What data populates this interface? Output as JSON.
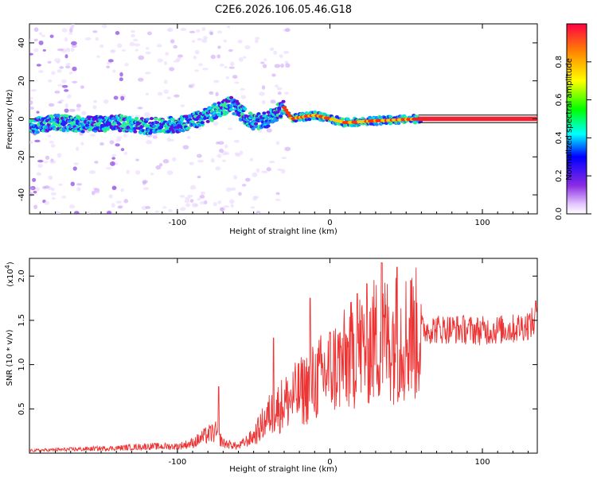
{
  "title": "C2E6.2026.106.05.46.G18",
  "chart_data": [
    {
      "type": "heatmap",
      "name": "spectrogram",
      "xlabel": "Height of straight line (km)",
      "ylabel": "Frequency (Hz)",
      "xlim": [
        -197,
        136
      ],
      "ylim": [
        -50,
        50
      ],
      "xticks": [
        -100,
        0,
        100
      ],
      "xtick_labels": [
        "-100",
        "0",
        "100"
      ],
      "yticks": [
        -40,
        -20,
        0,
        20,
        40
      ],
      "ytick_labels": [
        "-40",
        "-20",
        "0",
        "20",
        "40"
      ],
      "colorbar": {
        "label": "Normalized spectral amplitude",
        "range": [
          0.0,
          1.0
        ],
        "ticks": [
          0.0,
          0.2,
          0.4,
          0.6,
          0.8
        ],
        "tick_labels": [
          "0.0",
          "0.2",
          "0.4",
          "0.6",
          "0.8"
        ]
      },
      "ridge": [
        {
          "x": -197,
          "f": -4
        },
        {
          "x": -180,
          "f": -2
        },
        {
          "x": -160,
          "f": -3
        },
        {
          "x": -140,
          "f": -2
        },
        {
          "x": -120,
          "f": -4
        },
        {
          "x": -100,
          "f": -3
        },
        {
          "x": -85,
          "f": 0
        },
        {
          "x": -75,
          "f": 4
        },
        {
          "x": -65,
          "f": 8
        },
        {
          "x": -58,
          "f": 3
        },
        {
          "x": -50,
          "f": -2
        },
        {
          "x": -40,
          "f": 0
        },
        {
          "x": -30,
          "f": 6
        },
        {
          "x": -25,
          "f": 0
        },
        {
          "x": -10,
          "f": 2
        },
        {
          "x": 0,
          "f": 0
        },
        {
          "x": 10,
          "f": -2
        },
        {
          "x": 30,
          "f": -1
        },
        {
          "x": 60,
          "f": 0
        },
        {
          "x": 136,
          "f": 0
        }
      ]
    },
    {
      "type": "line",
      "name": "snr",
      "xlabel": "Height of straight line (km)",
      "ylabel": "SNR (10 * v/v)",
      "multiplier_label": "(x10",
      "multiplier_exp": "4",
      "multiplier_close": ")",
      "xlim": [
        -197,
        136
      ],
      "ylim": [
        0,
        2.2
      ],
      "xticks": [
        -100,
        0,
        100
      ],
      "xtick_labels": [
        "-100",
        "0",
        "100"
      ],
      "yticks": [
        0.5,
        1.0,
        1.5,
        2.0
      ],
      "ytick_labels": [
        "0.5",
        "1.0",
        "1.5",
        "2.0"
      ],
      "series_color": "#ee3333",
      "envelope": [
        {
          "x": -197,
          "y": 0.03
        },
        {
          "x": -160,
          "y": 0.05
        },
        {
          "x": -140,
          "y": 0.06
        },
        {
          "x": -120,
          "y": 0.08
        },
        {
          "x": -100,
          "y": 0.08
        },
        {
          "x": -90,
          "y": 0.12
        },
        {
          "x": -80,
          "y": 0.22
        },
        {
          "x": -75,
          "y": 0.25
        },
        {
          "x": -70,
          "y": 0.12
        },
        {
          "x": -60,
          "y": 0.08
        },
        {
          "x": -50,
          "y": 0.2
        },
        {
          "x": -40,
          "y": 0.45
        },
        {
          "x": -30,
          "y": 0.6
        },
        {
          "x": -20,
          "y": 0.72
        },
        {
          "x": -10,
          "y": 0.85
        },
        {
          "x": 0,
          "y": 1.0
        },
        {
          "x": 10,
          "y": 1.1
        },
        {
          "x": 20,
          "y": 1.25
        },
        {
          "x": 30,
          "y": 1.35
        },
        {
          "x": 40,
          "y": 1.38
        },
        {
          "x": 50,
          "y": 1.4
        },
        {
          "x": 60,
          "y": 1.42
        },
        {
          "x": 80,
          "y": 1.42
        },
        {
          "x": 100,
          "y": 1.4
        },
        {
          "x": 120,
          "y": 1.42
        },
        {
          "x": 136,
          "y": 1.5
        }
      ],
      "spikes": [
        {
          "x": -73,
          "y": 0.75
        },
        {
          "x": -37,
          "y": 1.3
        },
        {
          "x": -13,
          "y": 1.75
        },
        {
          "x": 18,
          "y": 1.8
        },
        {
          "x": 34,
          "y": 2.15
        },
        {
          "x": 44,
          "y": 2.1
        },
        {
          "x": 53,
          "y": 1.95
        },
        {
          "x": 135,
          "y": 1.72
        }
      ]
    }
  ]
}
